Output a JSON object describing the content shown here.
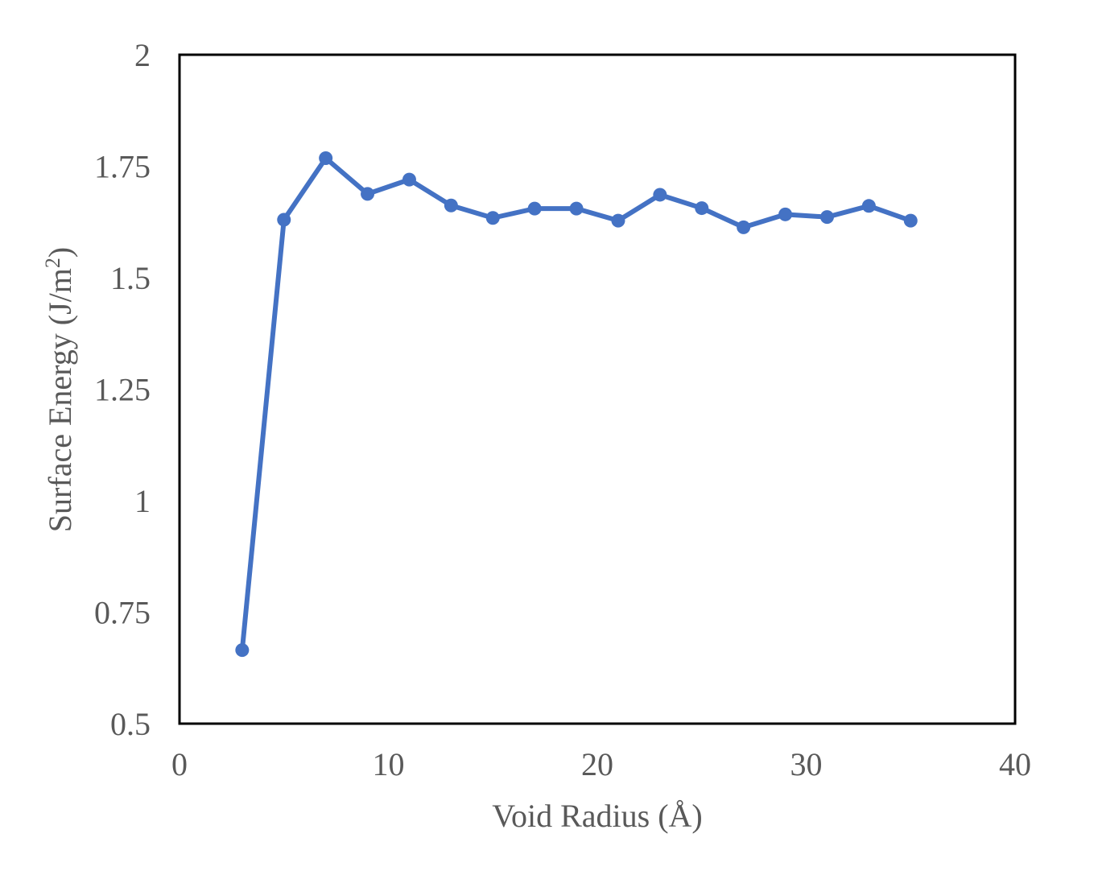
{
  "chart_data": {
    "type": "line",
    "title": "",
    "xlabel": "Void Radius (Å)",
    "ylabel": {
      "prefix": "Surface Energy (J/m",
      "superscript": "2",
      "suffix": ")"
    },
    "xlim": [
      0,
      40
    ],
    "ylim": [
      0.5,
      2
    ],
    "xticks": [
      "0",
      "10",
      "20",
      "30",
      "40"
    ],
    "yticks": [
      "0.5",
      "0.75",
      "1",
      "1.25",
      "1.5",
      "1.75",
      "2"
    ],
    "grid": false,
    "legend": "none",
    "series": [
      {
        "color": "#4472C4",
        "marker": "circle",
        "x": [
          3,
          5,
          7,
          9,
          11,
          13,
          15,
          17,
          19,
          21,
          23,
          25,
          27,
          29,
          31,
          33,
          35
        ],
        "y": [
          0.665,
          1.63,
          1.768,
          1.688,
          1.72,
          1.662,
          1.634,
          1.655,
          1.655,
          1.628,
          1.686,
          1.656,
          1.613,
          1.642,
          1.636,
          1.661,
          1.628
        ]
      }
    ]
  }
}
